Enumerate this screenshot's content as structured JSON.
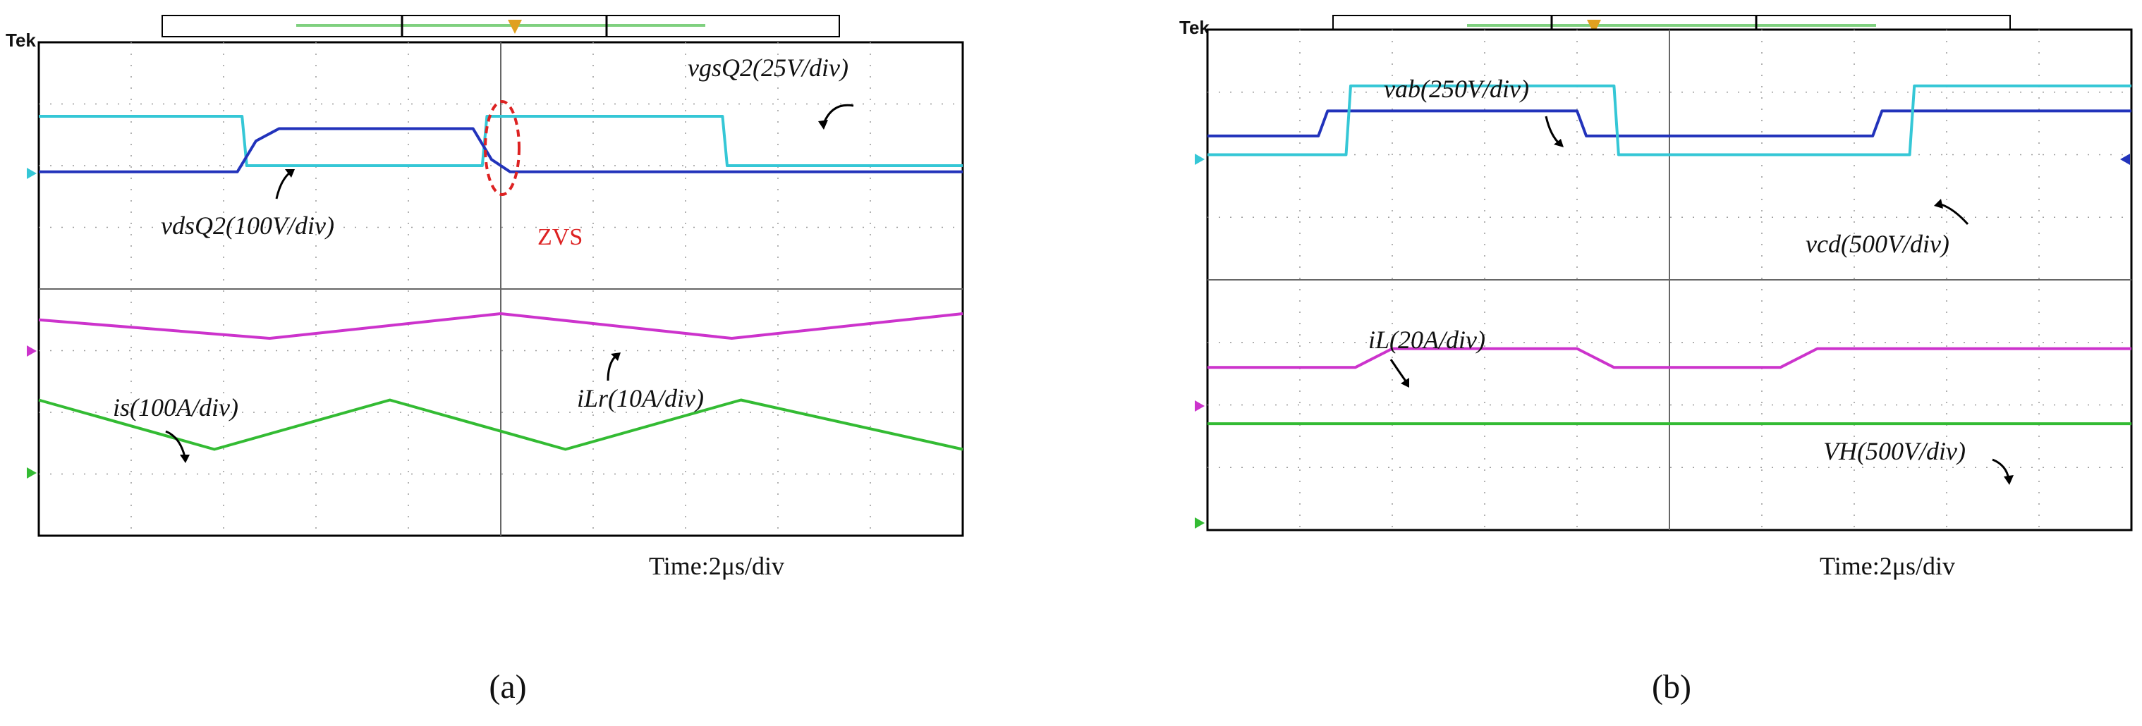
{
  "chart_data": [
    {
      "type": "line",
      "panel_label": "(a)",
      "tek_label": "Tek",
      "time_label": "Time:2μs/div",
      "annotation": "ZVS",
      "x_divisions": 10,
      "y_divisions": 8,
      "series": [
        {
          "name": "vgsQ2(25V/div)",
          "color": "#35c7d6",
          "x": [
            0,
            2.2,
            2.25,
            4.8,
            4.85,
            7.4,
            7.45,
            10
          ],
          "y": [
            6.8,
            6.8,
            6.0,
            6.0,
            6.8,
            6.8,
            6.0,
            6.0
          ]
        },
        {
          "name": "vdsQ2(100V/div)",
          "color": "#2233bb",
          "x": [
            0,
            2.15,
            2.35,
            2.6,
            4.7,
            4.9,
            5.1,
            10
          ],
          "y": [
            5.9,
            5.9,
            6.4,
            6.6,
            6.6,
            6.1,
            5.9,
            5.9
          ]
        },
        {
          "name": "iLr(10A/div)",
          "color": "#cc33cc",
          "x": [
            0,
            2.5,
            5.0,
            7.5,
            10
          ],
          "y": [
            3.5,
            3.2,
            3.6,
            3.2,
            3.6
          ]
        },
        {
          "name": "is(100A/div)",
          "color": "#33bb33",
          "x": [
            0,
            1.9,
            3.8,
            5.7,
            7.6,
            10
          ],
          "y": [
            2.2,
            1.4,
            2.2,
            1.4,
            2.2,
            1.4
          ]
        }
      ]
    },
    {
      "type": "line",
      "panel_label": "(b)",
      "tek_label": "Tek",
      "time_label": "Time:2μs/div",
      "x_divisions": 10,
      "y_divisions": 8,
      "series": [
        {
          "name": "vab(250V/div)",
          "color": "#2233bb",
          "x": [
            0,
            1.2,
            1.3,
            4.0,
            4.1,
            7.2,
            7.3,
            10
          ],
          "y": [
            6.3,
            6.3,
            6.7,
            6.7,
            6.3,
            6.3,
            6.7,
            6.7
          ]
        },
        {
          "name": "vcd(500V/div)",
          "color": "#35c7d6",
          "x": [
            0,
            1.5,
            1.55,
            4.4,
            4.45,
            7.6,
            7.65,
            10
          ],
          "y": [
            6.0,
            6.0,
            7.1,
            7.1,
            6.0,
            6.0,
            7.1,
            7.1
          ]
        },
        {
          "name": "iL(20A/div)",
          "color": "#cc33cc",
          "x": [
            0,
            1.6,
            2.0,
            4.0,
            4.4,
            6.2,
            6.6,
            10
          ],
          "y": [
            2.6,
            2.6,
            2.9,
            2.9,
            2.6,
            2.6,
            2.9,
            2.9
          ]
        },
        {
          "name": "VH(500V/div)",
          "color": "#33bb33",
          "x": [
            0,
            10
          ],
          "y": [
            1.7,
            1.7
          ]
        }
      ]
    }
  ]
}
